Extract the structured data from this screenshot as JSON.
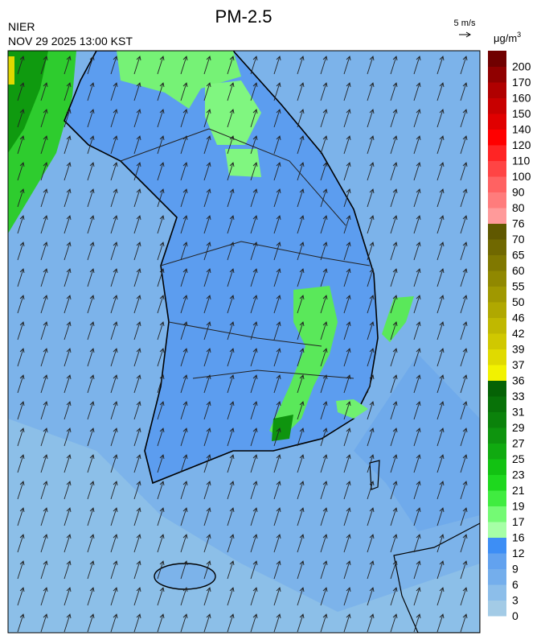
{
  "header": {
    "title": "PM-2.5",
    "agency": "NIER",
    "timestamp": "NOV 29 2025 13:00 KST",
    "wind_scale": "5 m/s"
  },
  "legend": {
    "unit": "μg/m",
    "unit_exponent": "3",
    "levels": [
      {
        "value": 0,
        "color": "#a3cbe6"
      },
      {
        "value": 3,
        "color": "#8cbeea"
      },
      {
        "value": 6,
        "color": "#74aeec"
      },
      {
        "value": 9,
        "color": "#62a2ef"
      },
      {
        "value": 12,
        "color": "#3d8ef5"
      },
      {
        "value": 16,
        "color": "#a6ffa6"
      },
      {
        "value": 17,
        "color": "#74fa74"
      },
      {
        "value": 19,
        "color": "#40ec40"
      },
      {
        "value": 21,
        "color": "#1ed81e"
      },
      {
        "value": 23,
        "color": "#12c212"
      },
      {
        "value": 25,
        "color": "#10aa10"
      },
      {
        "value": 27,
        "color": "#0e940e"
      },
      {
        "value": 29,
        "color": "#0b820b"
      },
      {
        "value": 31,
        "color": "#087208"
      },
      {
        "value": 33,
        "color": "#056205"
      },
      {
        "value": 36,
        "color": "#f2f200"
      },
      {
        "value": 37,
        "color": "#e0da00"
      },
      {
        "value": 39,
        "color": "#d0c800"
      },
      {
        "value": 42,
        "color": "#c0b800"
      },
      {
        "value": 46,
        "color": "#b0a800"
      },
      {
        "value": 50,
        "color": "#a09800"
      },
      {
        "value": 55,
        "color": "#908800"
      },
      {
        "value": 60,
        "color": "#807800"
      },
      {
        "value": 65,
        "color": "#706800"
      },
      {
        "value": 70,
        "color": "#605800"
      },
      {
        "value": 76,
        "color": "#ff9a9a"
      },
      {
        "value": 80,
        "color": "#ff7c7c"
      },
      {
        "value": 90,
        "color": "#ff6262"
      },
      {
        "value": 100,
        "color": "#ff4444"
      },
      {
        "value": 110,
        "color": "#ff2424"
      },
      {
        "value": 120,
        "color": "#ff0000"
      },
      {
        "value": 140,
        "color": "#e00000"
      },
      {
        "value": 150,
        "color": "#c80000"
      },
      {
        "value": 160,
        "color": "#b00000"
      },
      {
        "value": 170,
        "color": "#900000"
      },
      {
        "value": 200,
        "color": "#700000"
      }
    ]
  }
}
